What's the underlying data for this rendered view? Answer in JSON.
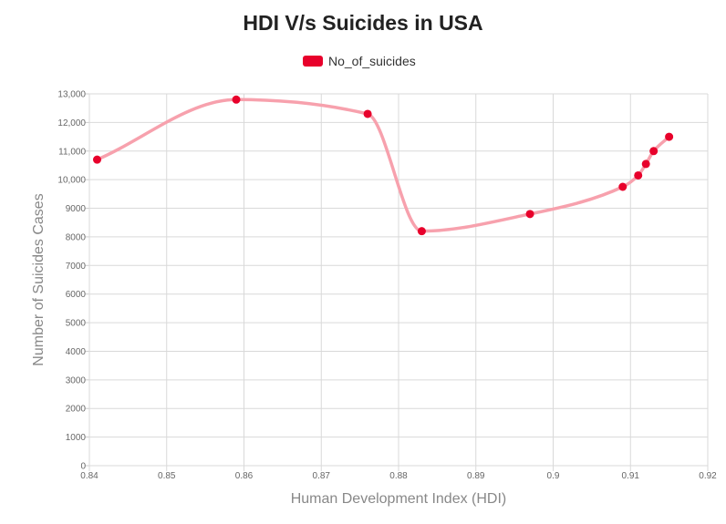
{
  "chart_data": {
    "type": "line",
    "title": "HDI V/s Suicides in USA",
    "xlabel": "Human Development Index (HDI)",
    "ylabel": "Number of Suicides Cases",
    "legend": {
      "entries": [
        "No_of_suicides"
      ],
      "position": "top-center"
    },
    "grid": true,
    "xlim": [
      0.84,
      0.92
    ],
    "ylim": [
      0,
      13000
    ],
    "x_ticks": [
      "0.84",
      "0.85",
      "0.86",
      "0.87",
      "0.88",
      "0.89",
      "0.9",
      "0.91",
      "0.92"
    ],
    "y_ticks": [
      "0",
      "1000",
      "2000",
      "3000",
      "4000",
      "5000",
      "6000",
      "7000",
      "8000",
      "9000",
      "10,000",
      "11,000",
      "12,000",
      "13,000"
    ],
    "series": [
      {
        "name": "No_of_suicides",
        "x": [
          0.841,
          0.859,
          0.876,
          0.883,
          0.897,
          0.909,
          0.911,
          0.912,
          0.913,
          0.915
        ],
        "y": [
          10700,
          12800,
          12300,
          8200,
          8800,
          9750,
          10150,
          10550,
          11000,
          11500
        ],
        "point_color": "#e8002b",
        "line_color": "#f7a1ad"
      }
    ]
  }
}
